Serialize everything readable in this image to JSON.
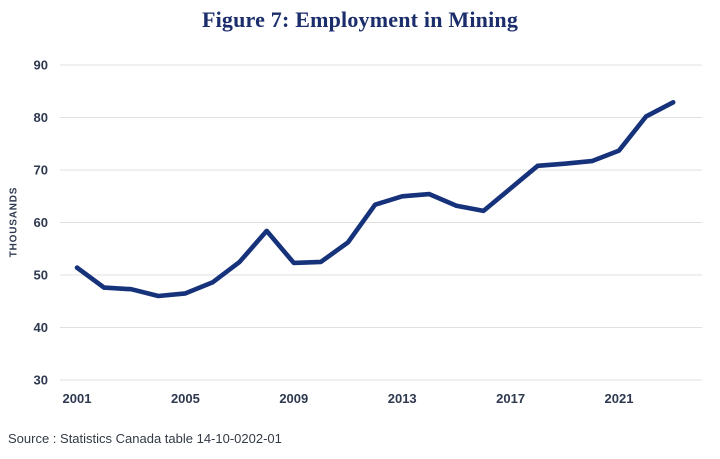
{
  "chart_data": {
    "type": "line",
    "title": "Figure 7: Employment in Mining",
    "xlabel": "",
    "ylabel": "THOUSANDS",
    "source": "Source : Statistics Canada table 14-10-0202-01",
    "x": [
      2001,
      2002,
      2003,
      2004,
      2005,
      2006,
      2007,
      2008,
      2009,
      2010,
      2011,
      2012,
      2013,
      2014,
      2015,
      2016,
      2017,
      2018,
      2019,
      2020,
      2021,
      2022,
      2023
    ],
    "values": [
      51.4,
      47.6,
      47.3,
      46.0,
      46.5,
      48.6,
      52.5,
      58.4,
      52.3,
      52.5,
      56.2,
      63.4,
      65.0,
      65.4,
      63.2,
      62.2,
      66.5,
      70.8,
      71.2,
      71.7,
      73.7,
      80.2,
      82.9
    ],
    "y_ticks": [
      30,
      40,
      50,
      60,
      70,
      80,
      90
    ],
    "ylim": [
      30,
      90
    ],
    "x_tick_labels": [
      "2001",
      "2005",
      "2009",
      "2013",
      "2017",
      "2021"
    ],
    "grid": "horizontal",
    "legend": "none"
  },
  "colors": {
    "line": "#16327a",
    "title": "#1b2e6b",
    "tick": "#2e3950",
    "grid": "#e0e0e0",
    "source": "#333a45",
    "background": "#ffffff"
  }
}
